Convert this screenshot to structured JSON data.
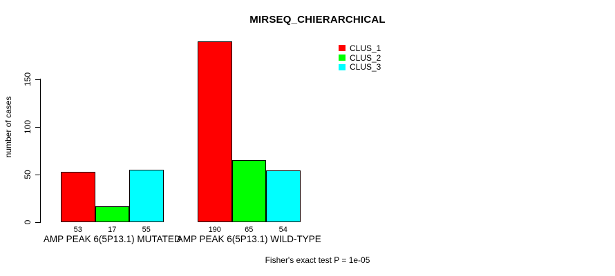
{
  "chart_data": {
    "type": "bar",
    "title": "MIRSEQ_CHIERARCHICAL",
    "ylabel": "number of cases",
    "xlabel": "",
    "ylim": [
      0,
      150
    ],
    "yticks": [
      0,
      50,
      100,
      150
    ],
    "grid": false,
    "legend_position": "top-right",
    "categories": [
      "AMP PEAK 6(5P13.1) MUTATED",
      "AMP PEAK 6(5P13.1) WILD-TYPE"
    ],
    "series": [
      {
        "name": "CLUS_1",
        "color": "#FF0000",
        "values": [
          53,
          190
        ]
      },
      {
        "name": "CLUS_2",
        "color": "#00FF00",
        "values": [
          17,
          65
        ]
      },
      {
        "name": "CLUS_3",
        "color": "#00FFFF",
        "values": [
          55,
          54
        ]
      }
    ],
    "show_value_labels": true,
    "bar_border_color": "#000000",
    "annotation": "Fisher's exact test P = 1e-05"
  }
}
